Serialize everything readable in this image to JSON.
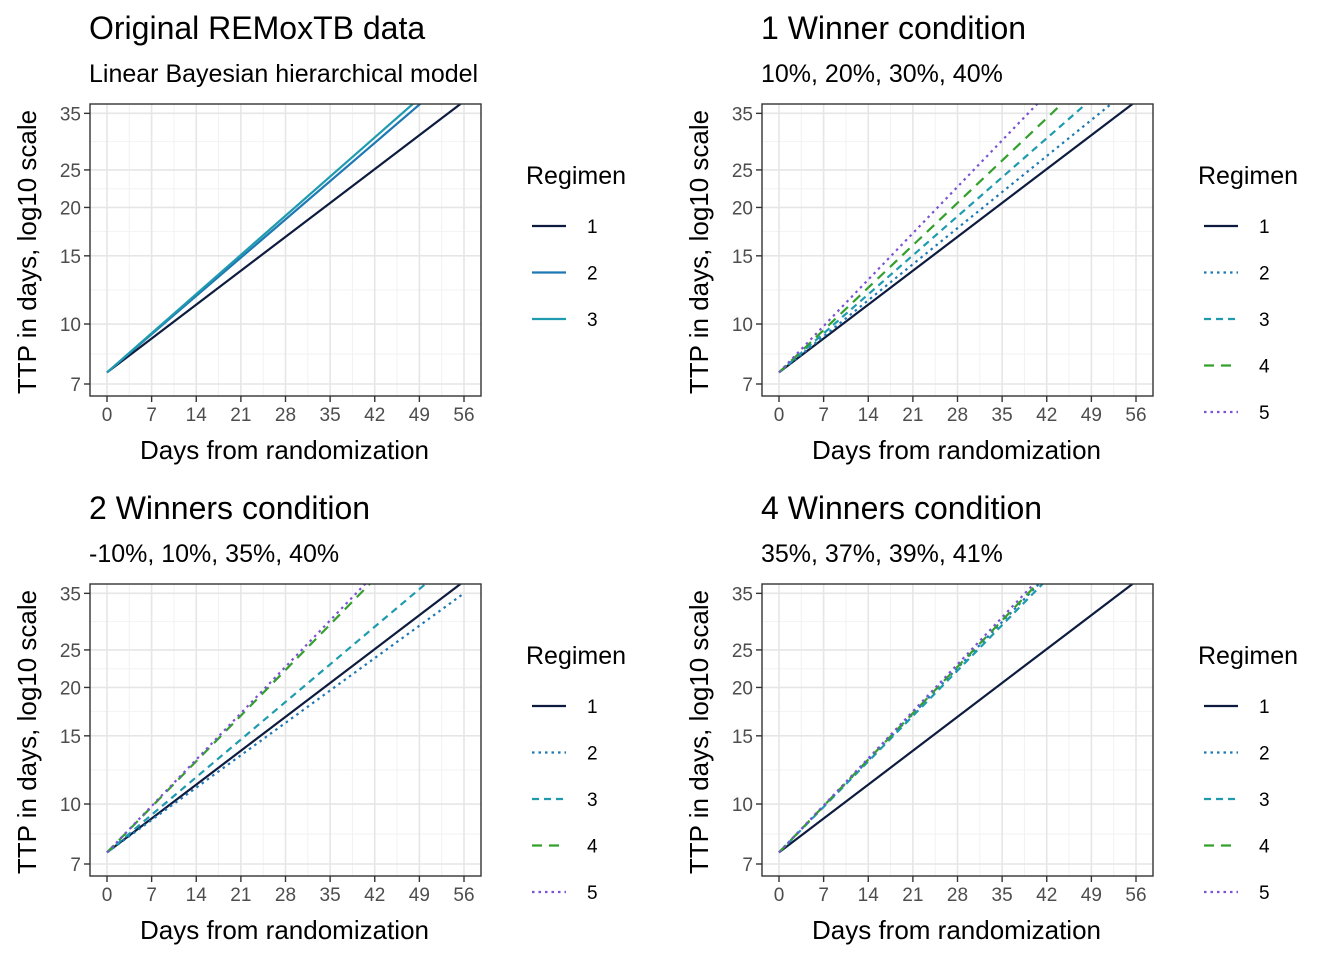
{
  "chart_data": [
    {
      "type": "line",
      "title": "Original REMoxTB data",
      "subtitle": "Linear Bayesian hierarchical model",
      "xlabel": "Days from randomization",
      "ylabel": "TTP in days, log10 scale",
      "xlim": [
        0,
        56
      ],
      "ylim": [
        7,
        37
      ],
      "y_scale": "log10",
      "x_ticks": [
        0,
        7,
        14,
        21,
        28,
        35,
        42,
        49,
        56
      ],
      "y_ticks": [
        7,
        10,
        15,
        20,
        25,
        35
      ],
      "grid": true,
      "legend": {
        "title": "Regimen",
        "position": "right"
      },
      "series": [
        {
          "name": "1",
          "x": [
            0,
            56
          ],
          "y": [
            7.5,
            37.6
          ],
          "color": "#0d1b3e",
          "linetype": "solid"
        },
        {
          "name": "2",
          "x": [
            0,
            50
          ],
          "y": [
            7.5,
            38.1
          ],
          "color": "#1f78b4",
          "linetype": "solid"
        },
        {
          "name": "3",
          "x": [
            0,
            49
          ],
          "y": [
            7.5,
            38.3
          ],
          "color": "#1f9bb0",
          "linetype": "solid"
        }
      ]
    },
    {
      "type": "line",
      "title": "1 Winner condition",
      "subtitle": "10%, 20%, 30%, 40%",
      "xlabel": "Days from randomization",
      "ylabel": "TTP in days, log10 scale",
      "xlim": [
        0,
        56
      ],
      "ylim": [
        7,
        37
      ],
      "y_scale": "log10",
      "x_ticks": [
        0,
        7,
        14,
        21,
        28,
        35,
        42,
        49,
        56
      ],
      "y_ticks": [
        7,
        10,
        15,
        20,
        25,
        35
      ],
      "grid": true,
      "legend": {
        "title": "Regimen",
        "position": "right"
      },
      "series": [
        {
          "name": "1",
          "x": [
            0,
            56
          ],
          "y": [
            7.5,
            37.6
          ],
          "color": "#0d1b3e",
          "linetype": "solid"
        },
        {
          "name": "2",
          "x": [
            0,
            56
          ],
          "y": [
            7.5,
            41.7
          ],
          "color": "#1f78b4",
          "linetype": "dotted"
        },
        {
          "name": "3",
          "x": [
            0,
            56
          ],
          "y": [
            7.5,
            48.0
          ],
          "color": "#1f9bb0",
          "linetype": "dashed"
        },
        {
          "name": "4",
          "x": [
            0,
            56
          ],
          "y": [
            7.5,
            56.3
          ],
          "color": "#33a02c",
          "linetype": "longdash"
        },
        {
          "name": "5",
          "x": [
            0,
            56
          ],
          "y": [
            7.5,
            68.2
          ],
          "color": "#7b52d4",
          "linetype": "dotted"
        }
      ]
    },
    {
      "type": "line",
      "title": "2 Winners condition",
      "subtitle": "-10%, 10%, 35%, 40%",
      "xlabel": "Days from randomization",
      "ylabel": "TTP in days, log10 scale",
      "xlim": [
        0,
        56
      ],
      "ylim": [
        7,
        37
      ],
      "y_scale": "log10",
      "x_ticks": [
        0,
        7,
        14,
        21,
        28,
        35,
        42,
        49,
        56
      ],
      "y_ticks": [
        7,
        10,
        15,
        20,
        25,
        35
      ],
      "grid": true,
      "legend": {
        "title": "Regimen",
        "position": "right"
      },
      "series": [
        {
          "name": "1",
          "x": [
            0,
            56
          ],
          "y": [
            7.5,
            37.6
          ],
          "color": "#0d1b3e",
          "linetype": "solid"
        },
        {
          "name": "2",
          "x": [
            0,
            56
          ],
          "y": [
            7.5,
            35.0
          ],
          "color": "#1f78b4",
          "linetype": "dotted"
        },
        {
          "name": "3",
          "x": [
            0,
            56
          ],
          "y": [
            7.5,
            44.9
          ],
          "color": "#1f9bb0",
          "linetype": "dashed"
        },
        {
          "name": "4",
          "x": [
            0,
            56
          ],
          "y": [
            7.5,
            65.6
          ],
          "color": "#33a02c",
          "linetype": "longdash"
        },
        {
          "name": "5",
          "x": [
            0,
            56
          ],
          "y": [
            7.5,
            68.2
          ],
          "color": "#7b52d4",
          "linetype": "dotted"
        }
      ]
    },
    {
      "type": "line",
      "title": "4 Winners condition",
      "subtitle": "35%, 37%, 39%, 41%",
      "xlabel": "Days from randomization",
      "ylabel": "TTP in days, log10 scale",
      "xlim": [
        0,
        56
      ],
      "ylim": [
        7,
        37
      ],
      "y_scale": "log10",
      "x_ticks": [
        0,
        7,
        14,
        21,
        28,
        35,
        42,
        49,
        56
      ],
      "y_ticks": [
        7,
        10,
        15,
        20,
        25,
        35
      ],
      "grid": true,
      "legend": {
        "title": "Regimen",
        "position": "right"
      },
      "series": [
        {
          "name": "1",
          "x": [
            0,
            56
          ],
          "y": [
            7.5,
            37.6
          ],
          "color": "#0d1b3e",
          "linetype": "solid"
        },
        {
          "name": "2",
          "x": [
            0,
            56
          ],
          "y": [
            7.5,
            67.2
          ],
          "color": "#1f78b4",
          "linetype": "dotted"
        },
        {
          "name": "3",
          "x": [
            0,
            56
          ],
          "y": [
            7.5,
            65.2
          ],
          "color": "#1f9bb0",
          "linetype": "dashed"
        },
        {
          "name": "4",
          "x": [
            0,
            56
          ],
          "y": [
            7.5,
            68.2
          ],
          "color": "#33a02c",
          "linetype": "longdash"
        },
        {
          "name": "5",
          "x": [
            0,
            56
          ],
          "y": [
            7.5,
            70.2
          ],
          "color": "#7b52d4",
          "linetype": "dotted"
        }
      ]
    }
  ]
}
